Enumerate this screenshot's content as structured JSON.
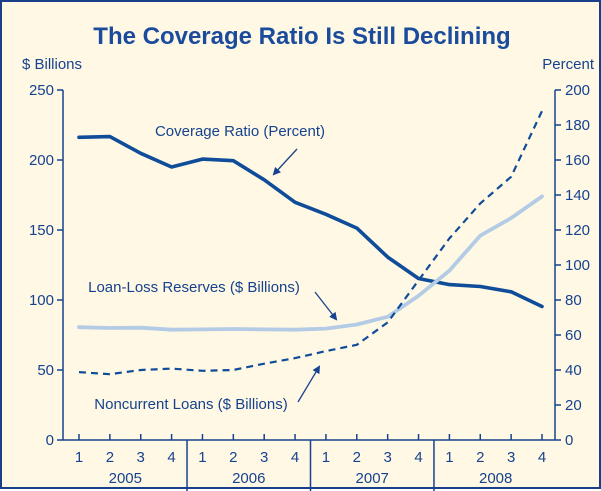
{
  "chart_data": {
    "type": "line",
    "title": "The Coverage Ratio Is Still Declining",
    "left_axis_unit": "$ Billions",
    "right_axis_unit": "Percent",
    "ylim_left": [
      0,
      250
    ],
    "ylim_right": [
      0,
      200
    ],
    "yticks_left": [
      "0",
      "50",
      "100",
      "150",
      "200",
      "250"
    ],
    "yticks_right": [
      "0",
      "20",
      "40",
      "60",
      "80",
      "100",
      "120",
      "140",
      "160",
      "180",
      "200"
    ],
    "quarters": [
      "1",
      "2",
      "3",
      "4",
      "1",
      "2",
      "3",
      "4",
      "1",
      "2",
      "3",
      "4",
      "1",
      "2",
      "3",
      "4"
    ],
    "years": [
      {
        "label": "2005",
        "first": 0,
        "last": 3
      },
      {
        "label": "2006",
        "first": 4,
        "last": 7
      },
      {
        "label": "2007",
        "first": 8,
        "last": 11
      },
      {
        "label": "2008",
        "first": 12,
        "last": 15
      }
    ],
    "grid": false,
    "series": [
      {
        "name": "Coverage Ratio (Percent)",
        "axis": "right",
        "style": "solid-dark",
        "color": "#0f4c99",
        "values": [
          173.0,
          173.4,
          163.8,
          156.0,
          160.5,
          159.6,
          148.7,
          135.8,
          129.0,
          121.1,
          104.5,
          92.3,
          88.8,
          87.7,
          84.7,
          76.3
        ]
      },
      {
        "name": "Loan-Loss Reserves ($ Billions)",
        "axis": "left",
        "style": "solid-light",
        "color": "#b4cbe6",
        "values": [
          80.6,
          80.0,
          80.2,
          78.8,
          79.0,
          79.3,
          79.0,
          78.8,
          79.6,
          82.5,
          88.0,
          103.0,
          121.0,
          146.0,
          158.5,
          174.0
        ]
      },
      {
        "name": "Noncurrent Loans ($ Billions)",
        "axis": "left",
        "style": "dashed",
        "color": "#0f4c99",
        "values": [
          48.5,
          47.0,
          50.0,
          51.0,
          49.4,
          50.0,
          54.5,
          58.5,
          63.5,
          68.0,
          84.0,
          114.0,
          144.0,
          169.0,
          188.0,
          235.0
        ]
      }
    ],
    "annotations": [
      {
        "series": 0,
        "text": "Coverage Ratio (Percent)"
      },
      {
        "series": 1,
        "text": "Loan-Loss Reserves ($ Billions)"
      },
      {
        "series": 2,
        "text": "Noncurrent Loans ($ Billions)"
      }
    ]
  },
  "colors": {
    "background": "#fff8e4",
    "border": "#1a3f8a",
    "axis": "#16428f",
    "text": "#16428f"
  }
}
